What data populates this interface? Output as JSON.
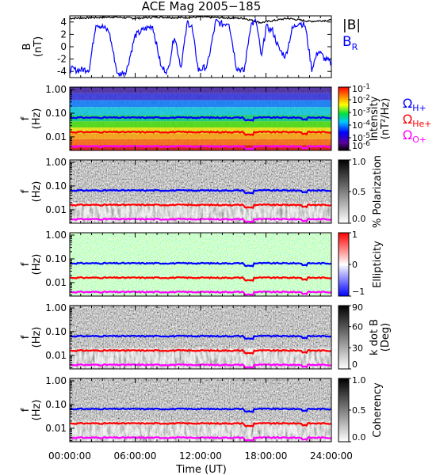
{
  "chart_data": {
    "type": "heatmap",
    "title": "ACE Mag 2005−185",
    "xlabel": "Time (UT)",
    "xticks": [
      "00:00:00",
      "06:00:00",
      "12:00:00",
      "18:00:00",
      "24:00:00"
    ],
    "xlim_hours": [
      0,
      24
    ],
    "colors": {
      "total": "#000000",
      "radial": "#0000ff",
      "h_gyro": "#0000ff",
      "he_gyro": "#ff0000",
      "o_gyro": "#ff00ff"
    },
    "gyro_freqs_hz": {
      "h": 0.065,
      "he": 0.016,
      "o": 0.004
    },
    "field_panel": {
      "ylabel_line1": "B",
      "ylabel_line2": "(nT)",
      "yticks": [
        "4",
        "2",
        "0",
        "-2",
        "-4"
      ],
      "ylim": [
        -5,
        5
      ],
      "series": [
        {
          "key": "total",
          "name": "|B|",
          "hours": [
            0,
            2,
            4,
            6,
            8,
            10,
            12,
            14,
            16,
            17.5,
            20,
            22,
            24
          ],
          "values": [
            4.6,
            4.7,
            4.8,
            4.6,
            4.8,
            4.7,
            4.8,
            4.7,
            4.6,
            3.9,
            4.6,
            4.1,
            4.3
          ]
        },
        {
          "key": "radial",
          "name": "B",
          "name_sub": "R",
          "hours": [
            0,
            0.8,
            1.8,
            2.4,
            3.0,
            3.6,
            4.4,
            5.2,
            6.0,
            6.8,
            7.6,
            8.4,
            9.0,
            9.6,
            10.2,
            10.8,
            11.2,
            11.8,
            12.6,
            13.4,
            14.0,
            14.6,
            15.3,
            16.0,
            16.6,
            17.1,
            17.6,
            18.0,
            18.6,
            19.2,
            19.8,
            20.4,
            21.0,
            21.6,
            22.2,
            22.8,
            23.4,
            24.0
          ],
          "values": [
            -3.6,
            -3.8,
            -3.6,
            3.8,
            3.2,
            2.5,
            -4.6,
            -3.9,
            1.8,
            2.8,
            3.4,
            -3.4,
            -4.0,
            1.9,
            -3.3,
            4.0,
            3.2,
            -3.8,
            -3.2,
            4.1,
            3.6,
            4.0,
            -3.4,
            -4.0,
            3.6,
            4.1,
            -1.8,
            3.2,
            2.6,
            -0.4,
            -1.6,
            2.8,
            4.0,
            3.4,
            -3.6,
            -0.6,
            -2.0,
            -2.6
          ]
        }
      ]
    },
    "spectrograms": [
      {
        "key": "intensity",
        "ylabel_line1": "f",
        "ylabel_line2": "(Hz)",
        "yticks": [
          "1.00",
          "0.10",
          "0.01"
        ],
        "colorbar_type": "rainbow",
        "colorbar_label": "Intensity",
        "colorbar_unit": "(nT²/Hz)",
        "colorbar_ticks": [
          {
            "base": "10",
            "exp": "-1"
          },
          {
            "base": "10",
            "exp": "-2"
          },
          {
            "base": "10",
            "exp": "-3"
          },
          {
            "base": "10",
            "exp": "-4"
          },
          {
            "base": "10",
            "exp": "-5"
          },
          {
            "base": "10",
            "exp": "-6"
          }
        ]
      },
      {
        "key": "polarization",
        "ylabel_line1": "f",
        "ylabel_line2": "(Hz)",
        "yticks": [
          "1.00",
          "0.10",
          "0.01"
        ],
        "colorbar_type": "gray",
        "colorbar_label": "% Polarization",
        "colorbar_ticks": [
          "1.0",
          "0.5",
          "0.0"
        ]
      },
      {
        "key": "ellipticity",
        "ylabel_line1": "f",
        "ylabel_line2": "(Hz)",
        "yticks": [
          "1.00",
          "0.10",
          "0.01"
        ],
        "colorbar_type": "redblue",
        "colorbar_label": "Ellipticity",
        "colorbar_ticks": [
          "1",
          "0",
          "−1"
        ]
      },
      {
        "key": "kdotb",
        "ylabel_line1": "f",
        "ylabel_line2": "(Hz)",
        "yticks": [
          "1.00",
          "0.10",
          "0.01"
        ],
        "colorbar_type": "gray",
        "colorbar_label": "k dot B",
        "colorbar_unit": "(Deg)",
        "colorbar_ticks": [
          "90",
          "60",
          "30",
          "0"
        ]
      },
      {
        "key": "coherency",
        "ylabel_line1": "f",
        "ylabel_line2": "(Hz)",
        "yticks": [
          "1.00",
          "0.10",
          "0.01"
        ],
        "colorbar_type": "gray",
        "colorbar_label": "Coherency",
        "colorbar_ticks": [
          "1.0",
          "0.5",
          "0.0"
        ]
      }
    ],
    "gyro_legend": [
      {
        "key": "h_gyro",
        "symbol": "Ω",
        "sub": "H+"
      },
      {
        "key": "he_gyro",
        "symbol": "Ω",
        "sub": "He+"
      },
      {
        "key": "o_gyro",
        "symbol": "Ω",
        "sub": "O+"
      }
    ]
  }
}
